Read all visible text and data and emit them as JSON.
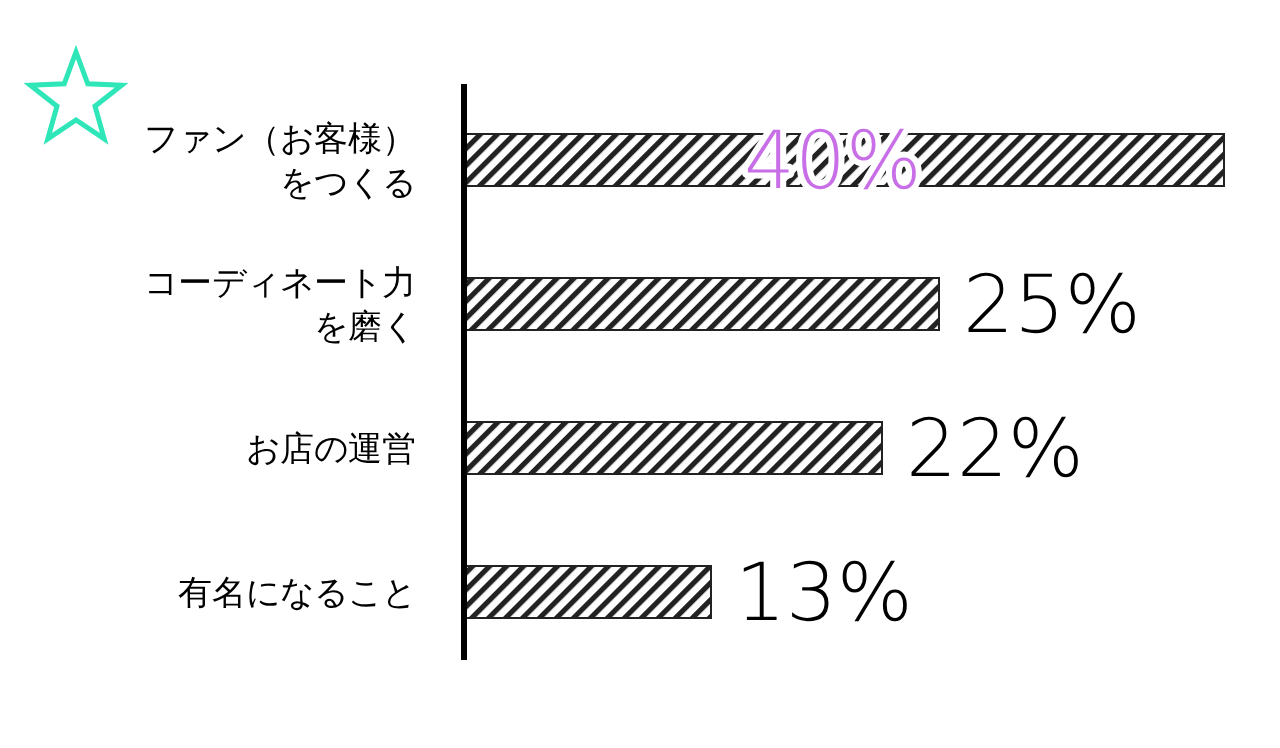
{
  "chart_data": {
    "type": "bar",
    "orientation": "horizontal",
    "relative": false,
    "categories": [
      "ファン（お客様）をつくる",
      "コーディネート力を磨く",
      "お店の運営",
      "有名になること"
    ],
    "values": [
      40,
      25,
      22,
      13
    ],
    "value_labels": [
      "40%",
      "25%",
      "22%",
      "13%"
    ],
    "color": "#222222"
  }
}
